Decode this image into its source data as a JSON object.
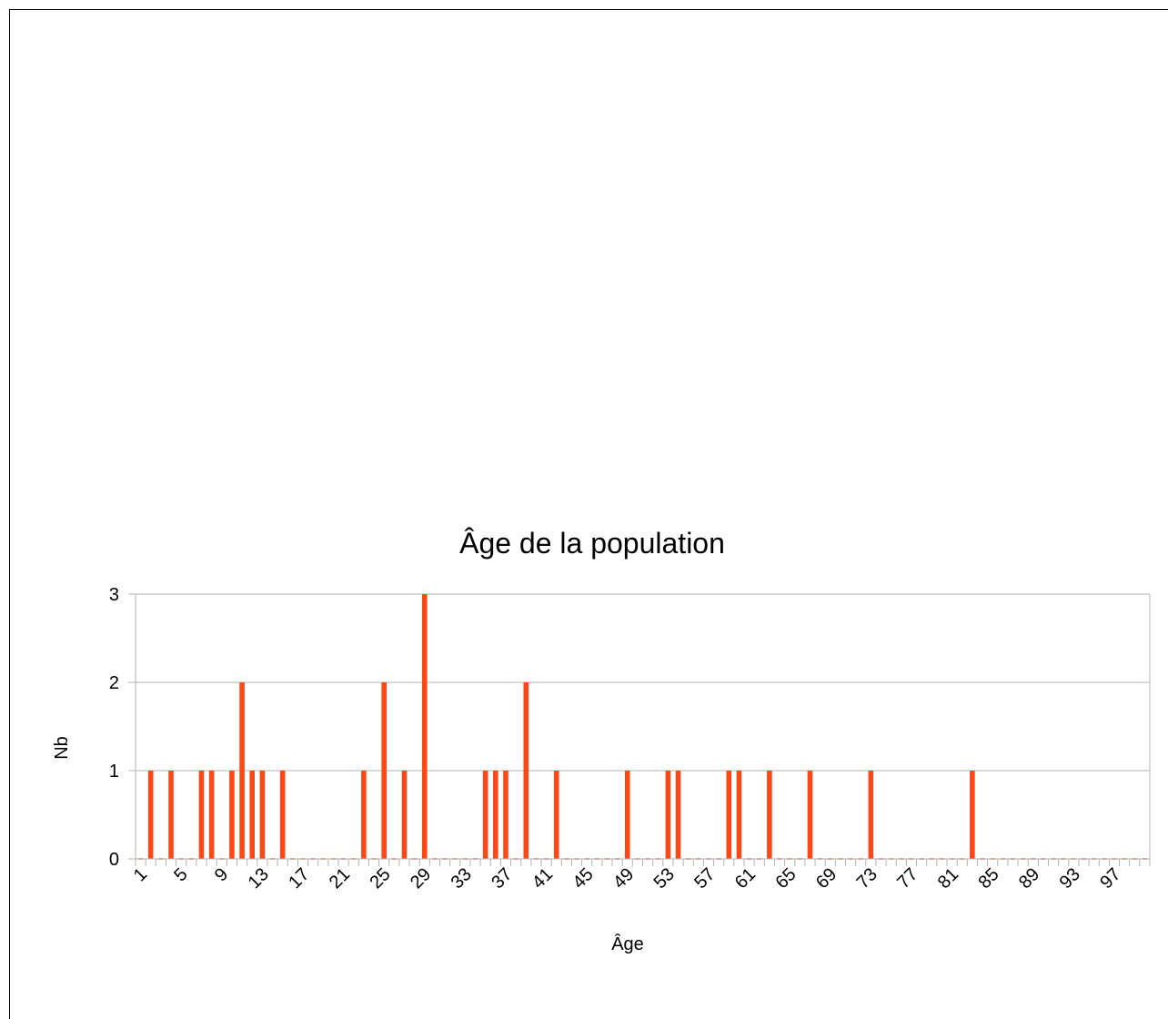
{
  "chart_data": {
    "type": "bar",
    "title": "Âge de la population",
    "xlabel": "Âge",
    "ylabel": "Nb",
    "ylim": [
      0,
      3
    ],
    "yticks": [
      0,
      1,
      2,
      3
    ],
    "grid": true,
    "bar_color": "#ff4615",
    "categories": [
      1,
      2,
      3,
      4,
      5,
      6,
      7,
      8,
      9,
      10,
      11,
      12,
      13,
      14,
      15,
      16,
      17,
      18,
      19,
      20,
      21,
      22,
      23,
      24,
      25,
      26,
      27,
      28,
      29,
      30,
      31,
      32,
      33,
      34,
      35,
      36,
      37,
      38,
      39,
      40,
      41,
      42,
      43,
      44,
      45,
      46,
      47,
      48,
      49,
      50,
      51,
      52,
      53,
      54,
      55,
      56,
      57,
      58,
      59,
      60,
      61,
      62,
      63,
      64,
      65,
      66,
      67,
      68,
      69,
      70,
      71,
      72,
      73,
      74,
      75,
      76,
      77,
      78,
      79,
      80,
      81,
      82,
      83,
      84,
      85,
      86,
      87,
      88,
      89,
      90,
      91,
      92,
      93,
      94,
      95,
      96,
      97,
      98,
      99,
      100
    ],
    "x_tick_labels": [
      "1",
      "5",
      "9",
      "13",
      "17",
      "21",
      "25",
      "29",
      "33",
      "37",
      "41",
      "45",
      "49",
      "53",
      "57",
      "61",
      "65",
      "69",
      "73",
      "77",
      "81",
      "85",
      "89",
      "93",
      "97"
    ],
    "values": [
      0,
      1,
      0,
      1,
      0,
      0,
      1,
      1,
      0,
      1,
      2,
      1,
      1,
      0,
      1,
      0,
      0,
      0,
      0,
      0,
      0,
      0,
      1,
      0,
      2,
      0,
      1,
      0,
      3,
      0,
      0,
      0,
      0,
      0,
      1,
      1,
      1,
      0,
      2,
      0,
      0,
      1,
      0,
      0,
      0,
      0,
      0,
      0,
      1,
      0,
      0,
      0,
      1,
      1,
      0,
      0,
      0,
      0,
      1,
      1,
      0,
      0,
      1,
      0,
      0,
      0,
      1,
      0,
      0,
      0,
      0,
      0,
      1,
      0,
      0,
      0,
      0,
      0,
      0,
      0,
      0,
      0,
      1,
      0,
      0,
      0,
      0,
      0,
      0,
      0,
      0,
      0,
      0,
      0,
      0,
      0,
      0,
      0,
      0,
      0
    ]
  }
}
